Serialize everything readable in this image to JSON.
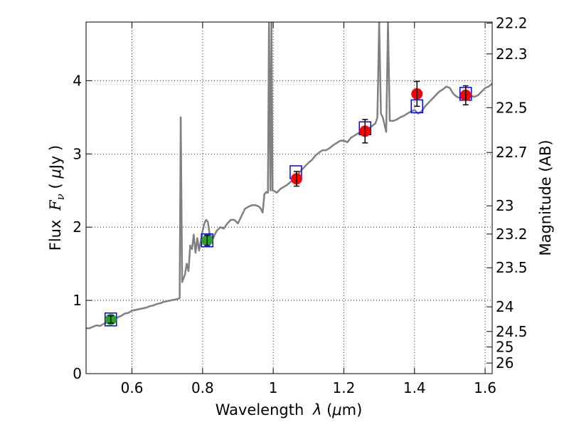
{
  "chart_data": {
    "type": "scatter",
    "xlabel_text": "Wavelength",
    "xlabel_symbol": "λ",
    "xlabel_unit_open": " (",
    "xlabel_unit_mu": "μ",
    "xlabel_unit_close": "m)",
    "ylabel_text": "Flux",
    "ylabel_symbol": "F",
    "ylabel_sub": "ν",
    "ylabel_unit_open": " ( ",
    "ylabel_unit_mu": "μ",
    "ylabel_unit_close": "Jy )",
    "y2label": "Magnitude (AB)",
    "xlim": [
      0.47,
      1.62
    ],
    "ylim": [
      0,
      4.8
    ],
    "grid": true,
    "x_ticks": [
      {
        "value": 0.6,
        "label": "0.6"
      },
      {
        "value": 0.8,
        "label": "0.8"
      },
      {
        "value": 1.0,
        "label": "1"
      },
      {
        "value": 1.2,
        "label": "1.2"
      },
      {
        "value": 1.4,
        "label": "1.4"
      },
      {
        "value": 1.6,
        "label": "1.6"
      }
    ],
    "y_ticks": [
      {
        "value": 0,
        "label": "0"
      },
      {
        "value": 1,
        "label": "1"
      },
      {
        "value": 2,
        "label": "2"
      },
      {
        "value": 3,
        "label": "3"
      },
      {
        "value": 4,
        "label": "4"
      }
    ],
    "mag_ticks": [
      {
        "value": 22.2,
        "label": "22.2"
      },
      {
        "value": 22.3,
        "label": "22.3"
      },
      {
        "value": 22.5,
        "label": "22.5"
      },
      {
        "value": 22.7,
        "label": "22.7"
      },
      {
        "value": 23.0,
        "label": "23"
      },
      {
        "value": 23.2,
        "label": "23.2"
      },
      {
        "value": 23.5,
        "label": "23.5"
      },
      {
        "value": 24.0,
        "label": "24"
      },
      {
        "value": 24.5,
        "label": "24.5"
      },
      {
        "value": 25.0,
        "label": "25"
      },
      {
        "value": 26.0,
        "label": "26"
      }
    ],
    "series": [
      {
        "name": "model_spectrum",
        "kind": "line",
        "color": "#808080",
        "points": [
          [
            0.47,
            0.62
          ],
          [
            0.48,
            0.62
          ],
          [
            0.49,
            0.64
          ],
          [
            0.5,
            0.66
          ],
          [
            0.51,
            0.65
          ],
          [
            0.52,
            0.68
          ],
          [
            0.53,
            0.7
          ],
          [
            0.54,
            0.71
          ],
          [
            0.55,
            0.74
          ],
          [
            0.56,
            0.77
          ],
          [
            0.57,
            0.79
          ],
          [
            0.58,
            0.82
          ],
          [
            0.59,
            0.83
          ],
          [
            0.6,
            0.86
          ],
          [
            0.61,
            0.87
          ],
          [
            0.62,
            0.88
          ],
          [
            0.63,
            0.89
          ],
          [
            0.64,
            0.9
          ],
          [
            0.65,
            0.92
          ],
          [
            0.66,
            0.93
          ],
          [
            0.67,
            0.95
          ],
          [
            0.68,
            0.96
          ],
          [
            0.69,
            0.98
          ],
          [
            0.7,
            0.99
          ],
          [
            0.71,
            1.0
          ],
          [
            0.72,
            1.01
          ],
          [
            0.73,
            1.02
          ],
          [
            0.735,
            1.03
          ],
          [
            0.738,
            3.5
          ],
          [
            0.742,
            1.25
          ],
          [
            0.75,
            1.35
          ],
          [
            0.755,
            1.5
          ],
          [
            0.76,
            1.4
          ],
          [
            0.765,
            1.75
          ],
          [
            0.77,
            1.7
          ],
          [
            0.775,
            1.9
          ],
          [
            0.78,
            1.65
          ],
          [
            0.785,
            1.85
          ],
          [
            0.79,
            1.68
          ],
          [
            0.8,
            1.95
          ],
          [
            0.805,
            2.05
          ],
          [
            0.81,
            2.1
          ],
          [
            0.815,
            2.07
          ],
          [
            0.82,
            1.9
          ],
          [
            0.83,
            1.85
          ],
          [
            0.84,
            1.95
          ],
          [
            0.85,
            2.0
          ],
          [
            0.86,
            1.98
          ],
          [
            0.87,
            2.05
          ],
          [
            0.88,
            2.1
          ],
          [
            0.89,
            2.1
          ],
          [
            0.9,
            2.05
          ],
          [
            0.91,
            2.15
          ],
          [
            0.92,
            2.25
          ],
          [
            0.93,
            2.28
          ],
          [
            0.94,
            2.3
          ],
          [
            0.95,
            2.3
          ],
          [
            0.96,
            2.28
          ],
          [
            0.965,
            2.25
          ],
          [
            0.97,
            2.2
          ],
          [
            0.975,
            2.45
          ],
          [
            0.98,
            2.48
          ],
          [
            0.985,
            2.47
          ],
          [
            0.988,
            4.8
          ],
          [
            0.992,
            2.5
          ],
          [
            0.995,
            4.8
          ],
          [
            0.998,
            2.5
          ],
          [
            1.0,
            2.5
          ],
          [
            1.01,
            2.47
          ],
          [
            1.02,
            2.52
          ],
          [
            1.03,
            2.55
          ],
          [
            1.04,
            2.58
          ],
          [
            1.05,
            2.62
          ],
          [
            1.06,
            2.68
          ],
          [
            1.07,
            2.72
          ],
          [
            1.08,
            2.78
          ],
          [
            1.09,
            2.83
          ],
          [
            1.1,
            2.88
          ],
          [
            1.11,
            2.92
          ],
          [
            1.12,
            2.98
          ],
          [
            1.13,
            3.02
          ],
          [
            1.14,
            3.05
          ],
          [
            1.15,
            3.05
          ],
          [
            1.16,
            3.08
          ],
          [
            1.17,
            3.12
          ],
          [
            1.18,
            3.15
          ],
          [
            1.19,
            3.18
          ],
          [
            1.2,
            3.18
          ],
          [
            1.21,
            3.16
          ],
          [
            1.22,
            3.22
          ],
          [
            1.23,
            3.25
          ],
          [
            1.24,
            3.28
          ],
          [
            1.25,
            3.3
          ],
          [
            1.26,
            3.32
          ],
          [
            1.27,
            3.35
          ],
          [
            1.28,
            3.38
          ],
          [
            1.29,
            3.42
          ],
          [
            1.295,
            3.5
          ],
          [
            1.3,
            4.8
          ],
          [
            1.305,
            3.55
          ],
          [
            1.31,
            3.5
          ],
          [
            1.315,
            3.4
          ],
          [
            1.32,
            3.3
          ],
          [
            1.325,
            4.8
          ],
          [
            1.33,
            3.45
          ],
          [
            1.34,
            3.45
          ],
          [
            1.35,
            3.47
          ],
          [
            1.36,
            3.5
          ],
          [
            1.37,
            3.52
          ],
          [
            1.38,
            3.55
          ],
          [
            1.39,
            3.58
          ],
          [
            1.4,
            3.6
          ],
          [
            1.41,
            3.55
          ],
          [
            1.42,
            3.58
          ],
          [
            1.43,
            3.65
          ],
          [
            1.44,
            3.7
          ],
          [
            1.45,
            3.75
          ],
          [
            1.46,
            3.8
          ],
          [
            1.47,
            3.85
          ],
          [
            1.48,
            3.88
          ],
          [
            1.49,
            3.92
          ],
          [
            1.5,
            3.9
          ],
          [
            1.51,
            3.82
          ],
          [
            1.52,
            3.78
          ],
          [
            1.53,
            3.76
          ],
          [
            1.54,
            3.78
          ],
          [
            1.55,
            3.8
          ],
          [
            1.56,
            3.79
          ],
          [
            1.57,
            3.78
          ],
          [
            1.58,
            3.8
          ],
          [
            1.59,
            3.85
          ],
          [
            1.6,
            3.9
          ],
          [
            1.61,
            3.92
          ],
          [
            1.62,
            3.96
          ]
        ]
      },
      {
        "name": "model_band_flux",
        "kind": "open-square",
        "color": "#0000ff",
        "points": [
          [
            0.54,
            0.74
          ],
          [
            0.813,
            1.82
          ],
          [
            1.064,
            2.75
          ],
          [
            1.26,
            3.35
          ],
          [
            1.407,
            3.65
          ],
          [
            1.545,
            3.82
          ]
        ]
      },
      {
        "name": "observed_optical",
        "kind": "point-errorbar",
        "color": "#2ca02c",
        "points": [
          {
            "x": 0.54,
            "y": 0.74,
            "err": 0.05
          },
          {
            "x": 0.813,
            "y": 1.82,
            "err": 0.07
          }
        ]
      },
      {
        "name": "observed_nir",
        "kind": "point-errorbar",
        "color": "#ff0000",
        "points": [
          {
            "x": 1.066,
            "y": 2.66,
            "err": 0.1
          },
          {
            "x": 1.26,
            "y": 3.31,
            "err": 0.16
          },
          {
            "x": 1.407,
            "y": 3.82,
            "err": 0.17
          },
          {
            "x": 1.545,
            "y": 3.8,
            "err": 0.13
          }
        ]
      }
    ]
  }
}
